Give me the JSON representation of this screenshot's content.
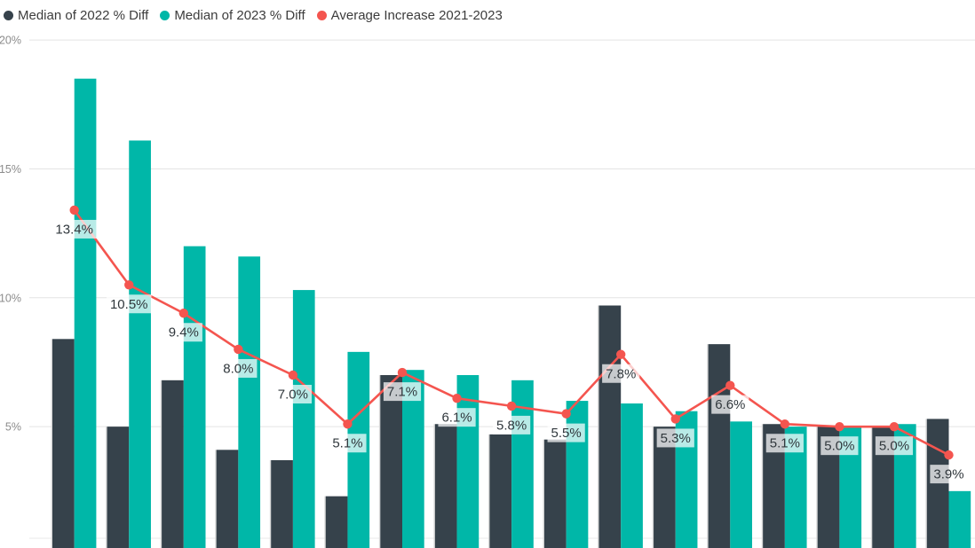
{
  "legend": {
    "items": [
      {
        "label": "Median of 2022 % Diff",
        "color": "#36424B"
      },
      {
        "label": "Median of 2023 % Diff",
        "color": "#00B7A8"
      },
      {
        "label": "Average Increase 2021-2023",
        "color": "#F4554F"
      }
    ]
  },
  "chart_data": {
    "type": "bar",
    "subtype": "grouped-bars-with-line",
    "num_groups": 17,
    "categories": [],
    "x_axis_labels_visible": false,
    "series": [
      {
        "name": "Median of 2022 % Diff",
        "type": "bar",
        "color": "#36424B",
        "values": [
          8.4,
          5.0,
          6.8,
          4.1,
          3.7,
          2.3,
          7.0,
          5.1,
          4.7,
          4.5,
          9.7,
          5.0,
          8.2,
          5.1,
          5.0,
          5.0,
          5.3
        ]
      },
      {
        "name": "Median of 2023 % Diff",
        "type": "bar",
        "color": "#00B7A8",
        "values": [
          18.5,
          16.1,
          12.0,
          11.6,
          10.3,
          7.9,
          7.2,
          7.0,
          6.8,
          6.0,
          5.9,
          5.6,
          5.2,
          5.0,
          5.0,
          5.1,
          2.5
        ]
      },
      {
        "name": "Average Increase 2021-2023",
        "type": "line",
        "color": "#F4554F",
        "data_labels_visible": true,
        "values": [
          13.4,
          10.5,
          9.4,
          8.0,
          7.0,
          5.1,
          7.1,
          6.1,
          5.8,
          5.5,
          7.8,
          5.3,
          6.6,
          5.1,
          5.0,
          5.0,
          3.9
        ]
      }
    ],
    "y_axis": {
      "ticks": [
        {
          "value": 20,
          "label": "20%"
        },
        {
          "value": 15,
          "label": "15%"
        },
        {
          "value": 10,
          "label": "10%"
        },
        {
          "value": 5,
          "label": "5%"
        }
      ]
    },
    "ylim": [
      0,
      20
    ],
    "grid": true,
    "legend_position": "top-left",
    "title": "",
    "xlabel": "",
    "ylabel": ""
  },
  "styles": {
    "background": "#FFFFFF",
    "grid_color": "#E4E4E4",
    "faint_baseline_color": "#E9E9E9",
    "axis_label_color": "#8C8C8C",
    "data_label_text_color": "#30373C",
    "data_label_bg": "rgba(255,255,255,0.72)",
    "bar_edge_color": "#D8D8D8"
  }
}
